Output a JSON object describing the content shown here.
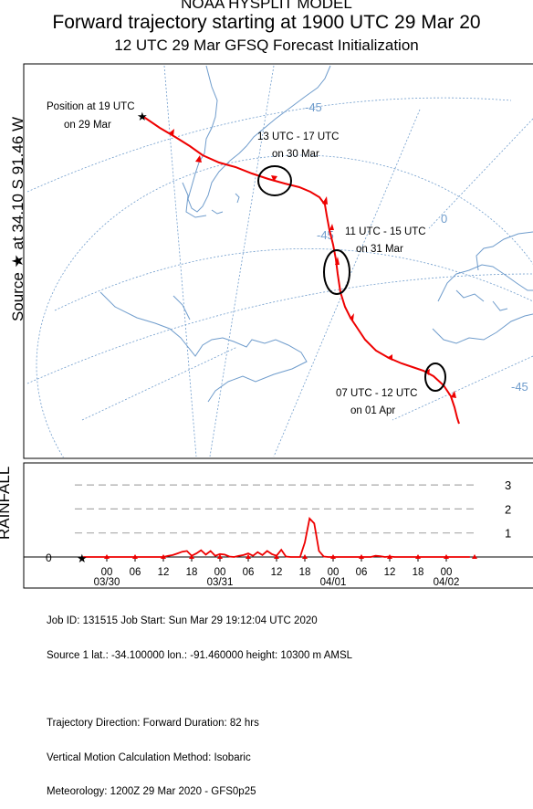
{
  "header": {
    "line1": "NOAA HYSPLIT MODEL",
    "line2": "Forward trajectory starting at 1900 UTC 29 Mar 20",
    "line3": "12 UTC 29 Mar    GFSQ  Forecast Initialization"
  },
  "side_label": {
    "source": "Source ★  at   34.10 S   91.46 W",
    "rainfall": "RAINFALL"
  },
  "map": {
    "grid_labels": [
      "-45",
      "-45",
      "0",
      "-45"
    ],
    "annotations": [
      {
        "line1": "Position at 19 UTC",
        "line2": "on 29 Mar"
      },
      {
        "line1": "13 UTC - 17 UTC",
        "line2": "on 30 Mar"
      },
      {
        "line1": "11 UTC - 15 UTC",
        "line2": "on 31 Mar"
      },
      {
        "line1": "07 UTC - 12 UTC",
        "line2": "on 01 Apr"
      }
    ],
    "colors": {
      "trajectory": "#ee0000",
      "map_lines": "#6f9ccc",
      "circle": "#000000"
    }
  },
  "chart_data": {
    "type": "line",
    "title": "RAINFALL",
    "x_tick_labels": [
      "00",
      "06",
      "12",
      "18",
      "00",
      "06",
      "12",
      "18",
      "00",
      "06",
      "12",
      "18",
      "00"
    ],
    "date_labels": [
      "03/30",
      "03/31",
      "04/01",
      "04/02"
    ],
    "y_tick_labels": [
      "0",
      "1",
      "2",
      "3"
    ],
    "ylim": [
      0,
      3
    ],
    "grid": true,
    "series": [
      {
        "x_hours_from_0000_30Mar": [
          -5,
          6,
          11,
          12,
          13,
          14,
          15,
          16,
          17,
          18,
          19,
          20,
          21,
          22,
          23,
          24,
          25,
          26,
          27,
          28,
          29,
          30,
          31,
          32,
          33,
          34,
          35,
          36,
          37,
          38,
          39,
          40,
          41,
          42,
          43,
          44,
          45,
          46,
          47,
          48,
          49,
          50,
          51,
          52,
          53,
          54,
          55,
          56,
          57,
          58,
          59,
          60,
          61,
          62,
          63,
          64,
          65,
          66,
          67,
          68,
          69,
          70,
          71,
          72,
          73,
          74,
          75,
          76,
          77
        ],
        "values": [
          0,
          0,
          0,
          0,
          0.05,
          0.08,
          0.15,
          0.22,
          0.25,
          0.05,
          0.15,
          0.28,
          0.1,
          0.25,
          0.05,
          0.12,
          0.1,
          0.02,
          0,
          0.05,
          0.08,
          0.15,
          0.05,
          0.2,
          0.08,
          0.25,
          0.12,
          0.05,
          0.3,
          0.02,
          0,
          0,
          0,
          0.6,
          1.6,
          1.4,
          0.25,
          0.02,
          0,
          0,
          0,
          0,
          0,
          0,
          0,
          0,
          0,
          0,
          0.05,
          0.03,
          0,
          0.02,
          0,
          0,
          0,
          0,
          0,
          0,
          0,
          0,
          0,
          0,
          0,
          0,
          0,
          0,
          0,
          0,
          0
        ]
      }
    ]
  },
  "footer": {
    "line1": "Job ID: 131515                    Job Start: Sun Mar 29 19:12:04 UTC 2020",
    "line2": "Source 1      lat.: -34.100000     lon.: -91.460000     height: 10300 m AMSL",
    "line3": "",
    "line4": "Trajectory Direction: Forward      Duration: 82 hrs",
    "line5": "Vertical Motion Calculation Method:        Isobaric",
    "line6": "Meteorology: 1200Z 29 Mar 2020 - GFS0p25"
  }
}
